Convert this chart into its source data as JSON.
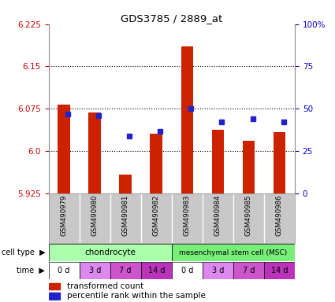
{
  "title": "GDS3785 / 2889_at",
  "samples": [
    "GSM490979",
    "GSM490980",
    "GSM490981",
    "GSM490982",
    "GSM490983",
    "GSM490984",
    "GSM490985",
    "GSM490986"
  ],
  "red_values": [
    6.082,
    6.068,
    5.958,
    6.03,
    6.185,
    6.038,
    6.018,
    6.033
  ],
  "blue_values": [
    6.065,
    6.063,
    6.027,
    6.035,
    6.075,
    6.052,
    6.057,
    6.052
  ],
  "y_min": 5.925,
  "y_max": 6.225,
  "y_ticks_left": [
    5.925,
    6.0,
    6.075,
    6.15,
    6.225
  ],
  "y_ticks_right_labels": [
    "0",
    "25",
    "50",
    "75",
    "100%"
  ],
  "y_ticks_right_values": [
    0,
    25,
    50,
    75,
    100
  ],
  "cell_type_labels": [
    "chondrocyte",
    "mesenchymal stem cell (MSC)"
  ],
  "time_labels": [
    "0 d",
    "3 d",
    "7 d",
    "14 d",
    "0 d",
    "3 d",
    "7 d",
    "14 d"
  ],
  "time_colors": [
    "#ffffff",
    "#dd88ee",
    "#cc55cc",
    "#bb33bb",
    "#ffffff",
    "#dd88ee",
    "#cc55cc",
    "#bb33bb"
  ],
  "cell_type_color1": "#aaffaa",
  "cell_type_color2": "#77ee77",
  "bar_color": "#cc2200",
  "blue_marker_color": "#2222cc",
  "label_area_color": "#c8c8c8",
  "tick_color_left": "#cc0000",
  "tick_color_right": "#0000cc",
  "grid_color": "#000000",
  "border_color": "#888888"
}
